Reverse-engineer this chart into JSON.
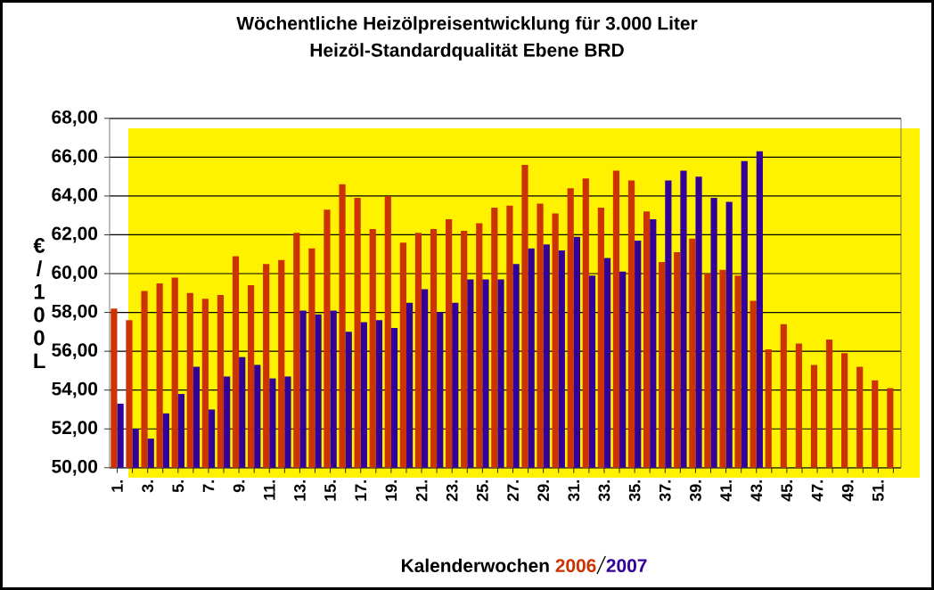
{
  "chart_data": {
    "type": "bar",
    "title": "Wöchentliche Heizölpreisentwicklung für 3.000 Liter",
    "subtitle": "Heizöl-Standardqualität Ebene BRD",
    "xlabel": "Kalenderwochen",
    "ylabel": "€ / 1 0 0 L",
    "categories": [
      "1.",
      null,
      "3.",
      null,
      "5.",
      null,
      "7.",
      null,
      "9.",
      null,
      "11.",
      null,
      "13.",
      null,
      "15.",
      null,
      "17.",
      null,
      "19.",
      null,
      "21.",
      null,
      "23.",
      null,
      "25.",
      null,
      "27.",
      null,
      "29.",
      null,
      "31.",
      null,
      "33.",
      null,
      "35.",
      null,
      "37.",
      null,
      "39.",
      null,
      "41.",
      null,
      "43.",
      null,
      "45.",
      null,
      "47.",
      null,
      "49.",
      null,
      "51.",
      null
    ],
    "series": [
      {
        "name": "2006",
        "color": "#cc3300",
        "values": [
          58.2,
          57.6,
          59.1,
          59.5,
          59.8,
          59.0,
          58.7,
          58.9,
          60.9,
          59.4,
          60.5,
          60.7,
          62.1,
          61.3,
          63.3,
          64.6,
          63.9,
          62.3,
          64.0,
          61.6,
          62.1,
          62.3,
          62.8,
          62.2,
          62.6,
          63.4,
          63.5,
          65.6,
          63.6,
          63.1,
          64.4,
          64.9,
          63.4,
          65.3,
          64.8,
          63.2,
          60.6,
          61.1,
          61.8,
          60.0,
          60.2,
          59.9,
          58.6,
          56.1,
          57.4,
          56.4,
          55.3,
          56.6,
          55.9,
          55.2,
          54.5,
          54.1
        ]
      },
      {
        "name": "2007",
        "color": "#330099",
        "values": [
          53.3,
          52.0,
          51.5,
          52.8,
          53.8,
          55.2,
          53.0,
          54.7,
          55.7,
          55.3,
          54.6,
          54.7,
          58.1,
          57.9,
          58.1,
          57.0,
          57.5,
          57.6,
          57.2,
          58.5,
          59.2,
          58.0,
          58.5,
          59.7,
          59.7,
          59.7,
          60.5,
          61.3,
          61.5,
          61.2,
          61.9,
          59.9,
          60.8,
          60.1,
          61.7,
          62.8,
          64.8,
          65.3,
          65.0,
          63.9,
          63.7,
          65.8,
          66.3,
          null,
          null,
          null,
          null,
          null,
          null,
          null,
          null,
          null
        ]
      }
    ],
    "ylim": [
      50,
      68
    ],
    "yticks": [
      {
        "value": 50,
        "label": "50,00"
      },
      {
        "value": 52,
        "label": "52,00"
      },
      {
        "value": 54,
        "label": "54,00"
      },
      {
        "value": 56,
        "label": "56,00"
      },
      {
        "value": 58,
        "label": "58,00"
      },
      {
        "value": 60,
        "label": "60,00"
      },
      {
        "value": 62,
        "label": "62,00"
      },
      {
        "value": 64,
        "label": "64,00"
      },
      {
        "value": 66,
        "label": "66,00"
      },
      {
        "value": 68,
        "label": "68,00"
      }
    ],
    "grid": "y",
    "legend": "bottom"
  }
}
